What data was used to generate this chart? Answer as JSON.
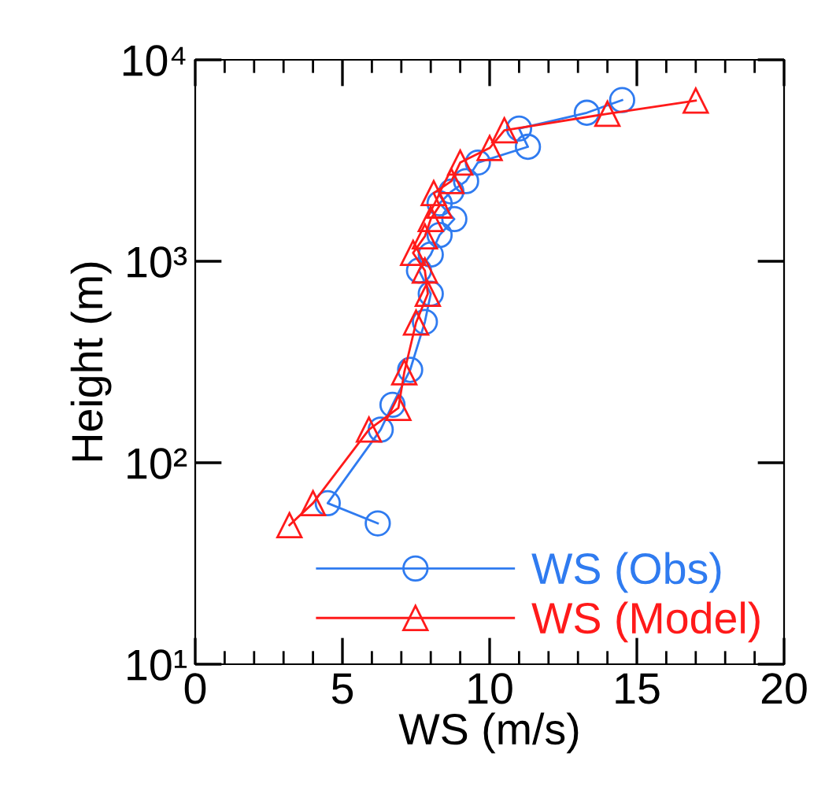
{
  "chart_data": {
    "type": "line",
    "xlabel": "WS (m/s)",
    "ylabel": "Height (m)",
    "log": "y",
    "xlim": [
      0,
      20
    ],
    "xticks": [
      0,
      5,
      10,
      15,
      20
    ],
    "ylim": [
      10,
      10000
    ],
    "yticks": [
      {
        "value": 10,
        "label": "10¹"
      },
      {
        "value": 100,
        "label": "10²"
      },
      {
        "value": 1000,
        "label": "10³"
      },
      {
        "value": 10000,
        "label": "10⁴"
      }
    ],
    "grid": false,
    "legend": "bottom right",
    "line_style": "solid",
    "series": [
      {
        "name": "WS (Obs)",
        "color": "#2f7bf0",
        "marker": "circle",
        "x": [
          6.2,
          4.5,
          6.3,
          6.7,
          7.3,
          7.8,
          8.0,
          7.6,
          8.0,
          8.3,
          8.8,
          8.3,
          8.7,
          9.2,
          9.6,
          11.3,
          11.0,
          13.3,
          14.5
        ],
        "values": [
          50,
          63,
          146,
          194,
          289,
          500,
          690,
          900,
          1080,
          1350,
          1620,
          1940,
          2220,
          2500,
          3090,
          3700,
          4560,
          5460,
          6310
        ]
      },
      {
        "name": "WS (Model)",
        "color": "#ff1a1a",
        "marker": "triangle",
        "x": [
          3.2,
          4.0,
          5.9,
          6.9,
          7.1,
          7.5,
          7.9,
          7.8,
          7.4,
          7.8,
          8.0,
          8.3,
          8.1,
          8.7,
          9.0,
          10.0,
          10.5,
          14.0,
          17.0
        ],
        "values": [
          49,
          63,
          146,
          187,
          281,
          496,
          690,
          900,
          1100,
          1330,
          1620,
          1890,
          2180,
          2500,
          3090,
          3650,
          4470,
          5400,
          6270
        ]
      }
    ]
  }
}
